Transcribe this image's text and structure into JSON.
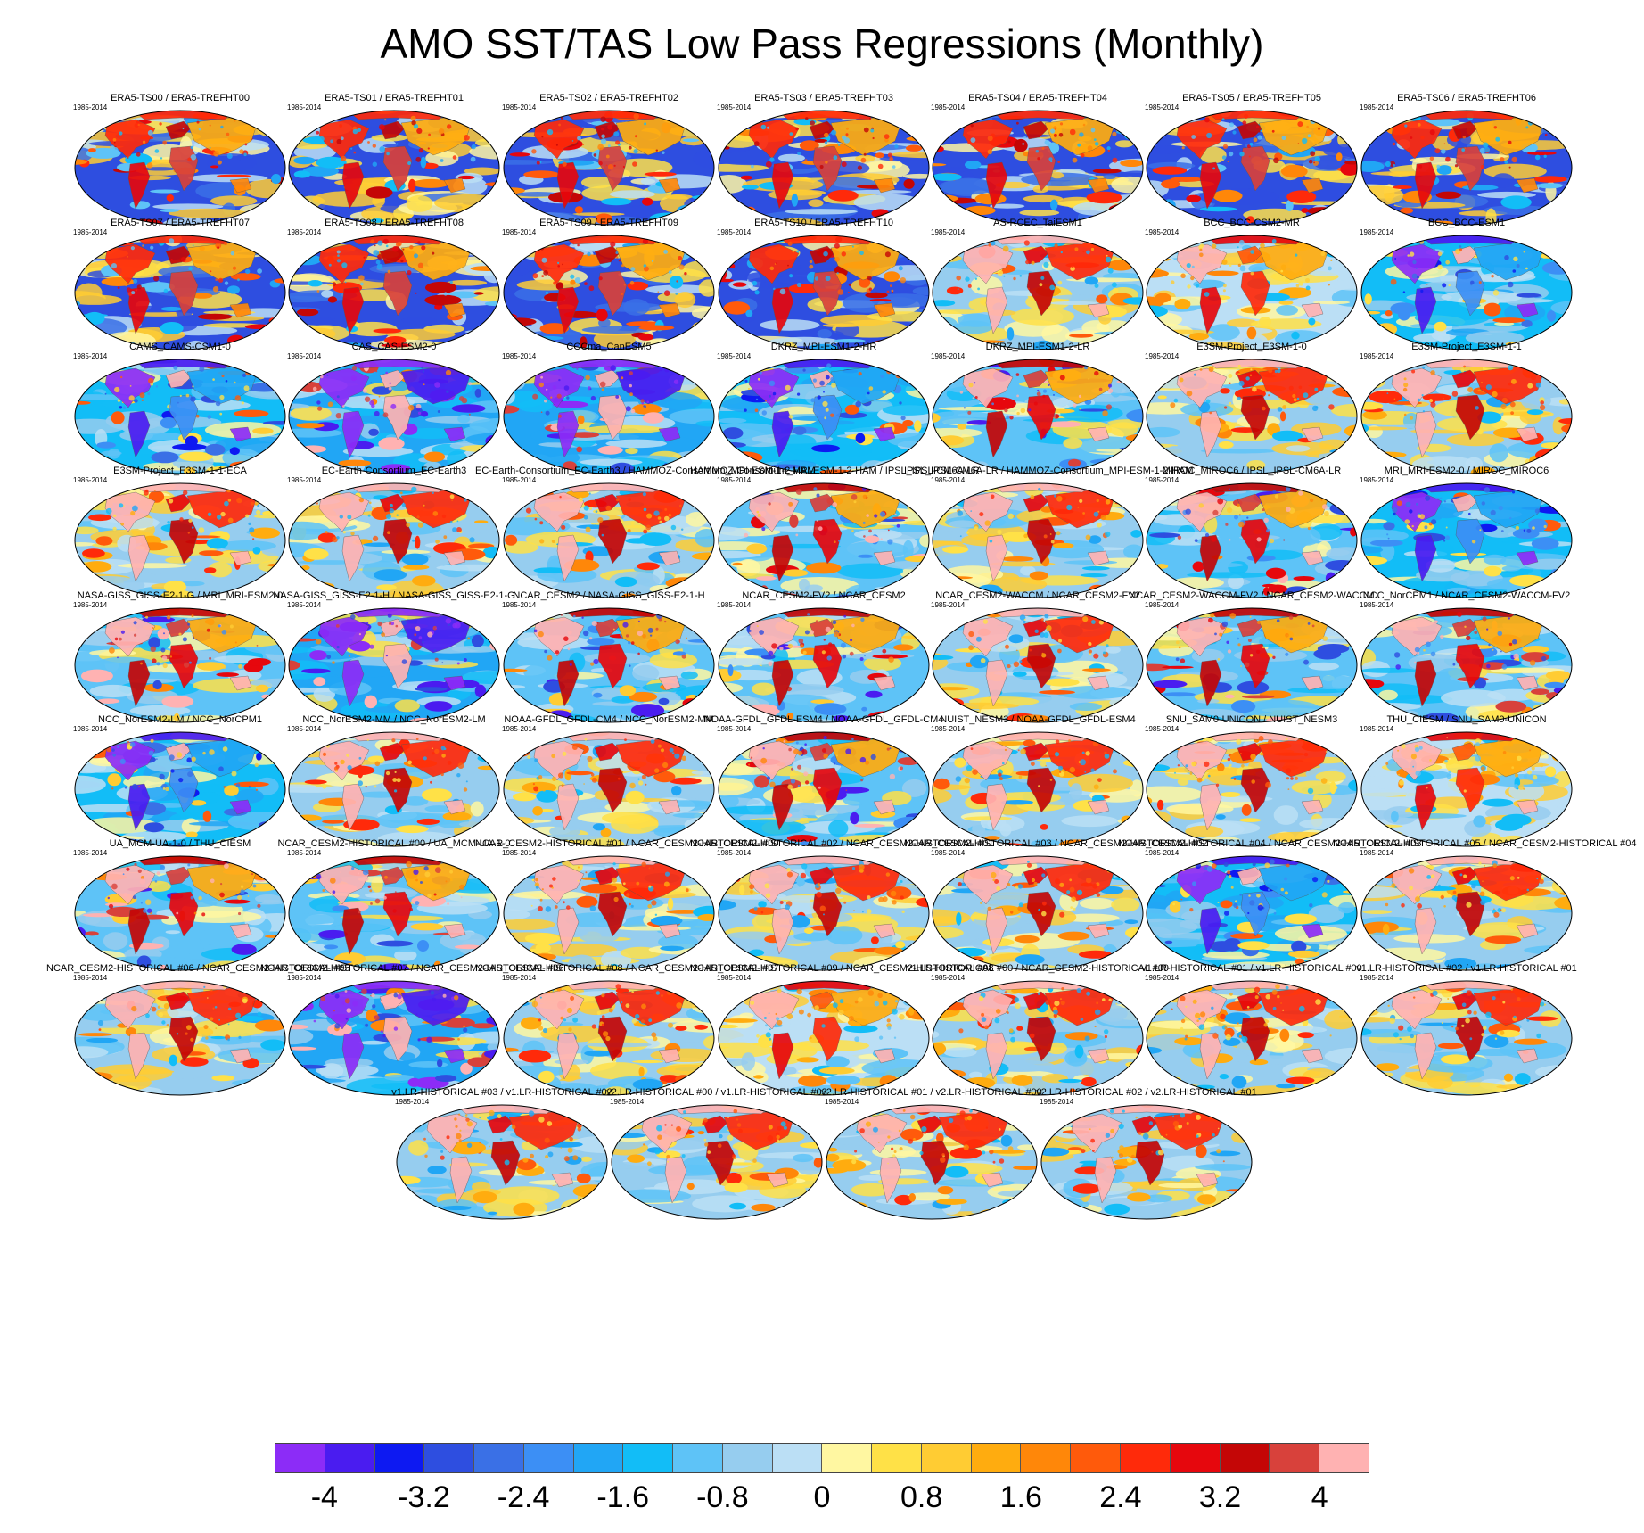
{
  "title": "AMO SST/TAS Low Pass Regressions (Monthly)",
  "period": "1985-2014",
  "panels": [
    {
      "title": "ERA5-TS00 / ERA5-TREFHT00",
      "style": "obs"
    },
    {
      "title": "ERA5-TS01 / ERA5-TREFHT01",
      "style": "obs"
    },
    {
      "title": "ERA5-TS02 / ERA5-TREFHT02",
      "style": "obs"
    },
    {
      "title": "ERA5-TS03 / ERA5-TREFHT03",
      "style": "obs"
    },
    {
      "title": "ERA5-TS04 / ERA5-TREFHT04",
      "style": "obs"
    },
    {
      "title": "ERA5-TS05 / ERA5-TREFHT05",
      "style": "obs"
    },
    {
      "title": "ERA5-TS06 / ERA5-TREFHT06",
      "style": "obs"
    },
    {
      "title": "ERA5-TS07 / ERA5-TREFHT07",
      "style": "obs"
    },
    {
      "title": "ERA5-TS08 / ERA5-TREFHT08",
      "style": "obs"
    },
    {
      "title": "ERA5-TS09 / ERA5-TREFHT09",
      "style": "obs"
    },
    {
      "title": "ERA5-TS10 / ERA5-TREFHT10",
      "style": "obs"
    },
    {
      "title": "AS-RCEC_TaiESM1",
      "style": "warm"
    },
    {
      "title": "BCC_BCC-CSM2-MR",
      "style": "mild"
    },
    {
      "title": "BCC_BCC-ESM1",
      "style": "cool"
    },
    {
      "title": "CAMS_CAMS-CSM1-0",
      "style": "cool"
    },
    {
      "title": "CAS_CAS-ESM2-0",
      "style": "extreme"
    },
    {
      "title": "CCCma_CanESM5",
      "style": "extreme"
    },
    {
      "title": "DKRZ_MPI-ESM1-2-HR",
      "style": "cool"
    },
    {
      "title": "DKRZ_MPI-ESM1-2-LR",
      "style": "mixed"
    },
    {
      "title": "E3SM-Project_E3SM-1-0",
      "style": "warm"
    },
    {
      "title": "E3SM-Project_E3SM-1-1",
      "style": "warm"
    },
    {
      "title": "E3SM-Project_E3SM-1-1-ECA",
      "style": "warm"
    },
    {
      "title": "EC-Earth-Consortium_EC-Earth3",
      "style": "warm"
    },
    {
      "title": "EC-Earth-Consortium_EC-Earth3 / HAMMOZ-Consortium_MPI-ESM-1-2-HAM",
      "style": "warm"
    },
    {
      "title": "HAMMOZ-Consortium_MPI-ESM-1-2-HAM / IPSL_IPSL-CM6A-LR",
      "style": "mixed"
    },
    {
      "title": "IPSL_IPSL-CM6A-LR / HAMMOZ-Consortium_MPI-ESM-1-2-HAM",
      "style": "warm"
    },
    {
      "title": "MIROC_MIROC6 / IPSL_IPSL-CM6A-LR",
      "style": "mixed"
    },
    {
      "title": "MRI_MRI-ESM2-0 / MIROC_MIROC6",
      "style": "cool"
    },
    {
      "title": "NASA-GISS_GISS-E2-1-G / MRI_MRI-ESM2-0",
      "style": "mixed"
    },
    {
      "title": "NASA-GISS_GISS-E2-1-H / NASA-GISS_GISS-E2-1-G",
      "style": "extreme"
    },
    {
      "title": "NCAR_CESM2 / NASA-GISS_GISS-E2-1-H",
      "style": "mixed"
    },
    {
      "title": "NCAR_CESM2-FV2 / NCAR_CESM2",
      "style": "mixed"
    },
    {
      "title": "NCAR_CESM2-WACCM / NCAR_CESM2-FV2",
      "style": "warm"
    },
    {
      "title": "NCAR_CESM2-WACCM-FV2 / NCAR_CESM2-WACCM",
      "style": "mixed"
    },
    {
      "title": "NCC_NorCPM1 / NCAR_CESM2-WACCM-FV2",
      "style": "mixed"
    },
    {
      "title": "NCC_NorESM2-LM / NCC_NorCPM1",
      "style": "cool"
    },
    {
      "title": "NCC_NorESM2-MM / NCC_NorESM2-LM",
      "style": "warm"
    },
    {
      "title": "NOAA-GFDL_GFDL-CM4 / NCC_NorESM2-MM",
      "style": "warm"
    },
    {
      "title": "NOAA-GFDL_GFDL-ESM4 / NOAA-GFDL_GFDL-CM4",
      "style": "mixed"
    },
    {
      "title": "NUIST_NESM3 / NOAA-GFDL_GFDL-ESM4",
      "style": "warm"
    },
    {
      "title": "SNU_SAM0-UNICON / NUIST_NESM3",
      "style": "warm"
    },
    {
      "title": "THU_CIESM / SNU_SAM0-UNICON",
      "style": "mild"
    },
    {
      "title": "UA_MCM-UA-1-0 / THU_CIESM",
      "style": "mixed"
    },
    {
      "title": "NCAR_CESM2-HISTORICAL  #00 / UA_MCM-UA-1-0",
      "style": "mixed"
    },
    {
      "title": "NCAR_CESM2-HISTORICAL  #01 / NCAR_CESM2-HISTORICAL  #00",
      "style": "warm"
    },
    {
      "title": "NCAR_CESM2-HISTORICAL  #02 / NCAR_CESM2-HISTORICAL  #01",
      "style": "warm"
    },
    {
      "title": "NCAR_CESM2-HISTORICAL  #03 / NCAR_CESM2-HISTORICAL  #02",
      "style": "warm"
    },
    {
      "title": "NCAR_CESM2-HISTORICAL  #04 / NCAR_CESM2-HISTORICAL  #03",
      "style": "cool"
    },
    {
      "title": "NCAR_CESM2-HISTORICAL  #05 / NCAR_CESM2-HISTORICAL  #04",
      "style": "warm"
    },
    {
      "title": "NCAR_CESM2-HISTORICAL  #06 / NCAR_CESM2-HISTORICAL  #05",
      "style": "warm"
    },
    {
      "title": "NCAR_CESM2-HISTORICAL  #07 / NCAR_CESM2-HISTORICAL  #06",
      "style": "extreme"
    },
    {
      "title": "NCAR_CESM2-HISTORICAL  #08 / NCAR_CESM2-HISTORICAL  #07",
      "style": "warm"
    },
    {
      "title": "NCAR_CESM2-HISTORICAL  #09 / NCAR_CESM2-HISTORICAL  #08",
      "style": "mild"
    },
    {
      "title": "v1.LR-HISTORICAL  #00 / NCAR_CESM2-HISTORICAL  #09",
      "style": "warm"
    },
    {
      "title": "v1.LR-HISTORICAL  #01 / v1.LR-HISTORICAL  #00",
      "style": "warm"
    },
    {
      "title": "v1.LR-HISTORICAL  #02 / v1.LR-HISTORICAL  #01",
      "style": "warm"
    },
    {
      "title": "v1.LR-HISTORICAL  #03 / v1.LR-HISTORICAL  #02",
      "style": "warm"
    },
    {
      "title": "v2.LR-HISTORICAL  #00 / v1.LR-HISTORICAL  #03",
      "style": "warm"
    },
    {
      "title": "v2.LR-HISTORICAL  #01 / v2.LR-HISTORICAL  #00",
      "style": "warm"
    },
    {
      "title": "v2.LR-HISTORICAL  #02 / v2.LR-HISTORICAL  #01",
      "style": "warm"
    }
  ],
  "colorbar": {
    "colors": [
      "#8c2cf7",
      "#4a1cf0",
      "#0d19f2",
      "#2e4ee0",
      "#3a70e6",
      "#3c8ff5",
      "#21a6f5",
      "#12bdf7",
      "#5ec3f7",
      "#96cdef",
      "#bbdff5",
      "#fff7a1",
      "#ffe147",
      "#ffcc33",
      "#ffac0f",
      "#ff8709",
      "#ff5a0b",
      "#ff2a0a",
      "#e6070d",
      "#c40606",
      "#d8413b",
      "#ffb2b2"
    ],
    "tick_labels": [
      "-4",
      "-3.2",
      "-2.4",
      "-1.6",
      "-0.8",
      "0",
      "0.8",
      "1.6",
      "2.4",
      "3.2",
      "4"
    ]
  }
}
